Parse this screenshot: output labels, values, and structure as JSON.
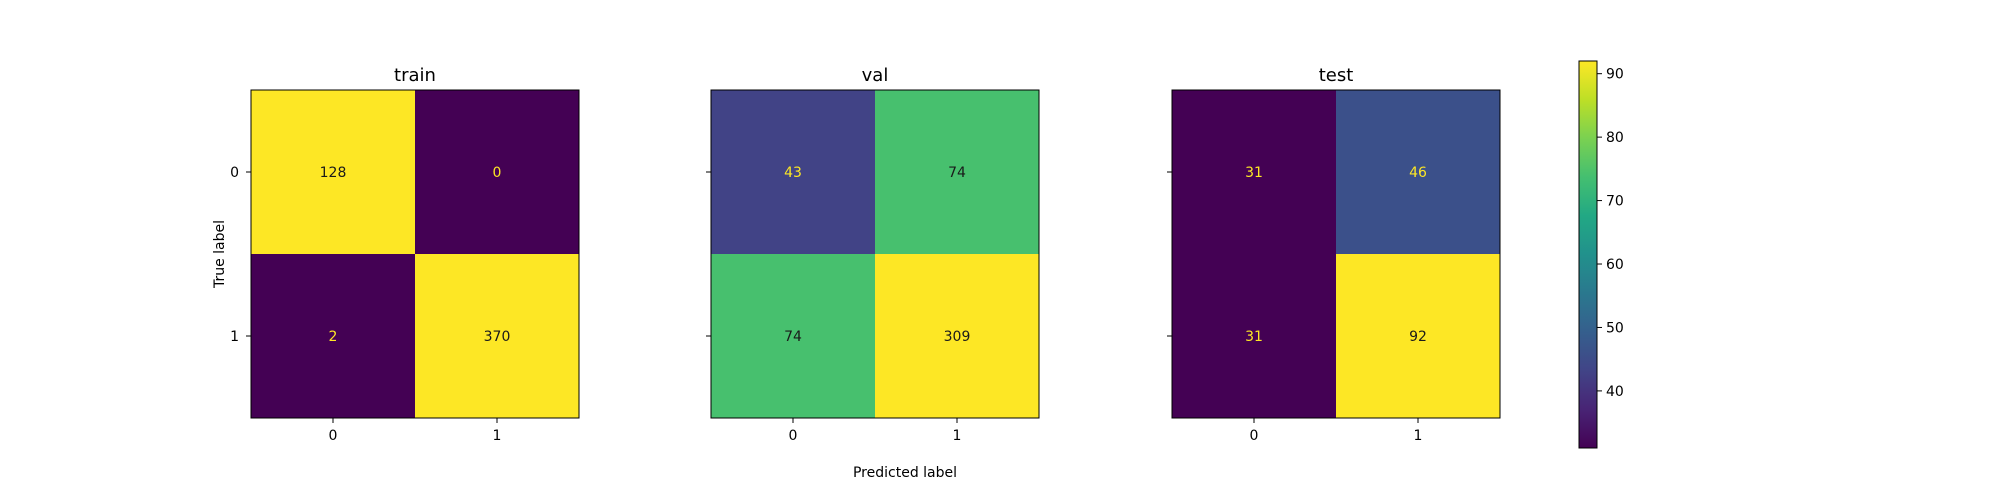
{
  "chart_data": {
    "type": "heatmap",
    "colormap": "viridis",
    "xlabel": "Predicted label",
    "ylabel": "True label",
    "class_labels": [
      "0",
      "1"
    ],
    "colorbar": {
      "range": [
        31,
        92
      ],
      "ticks": [
        40,
        50,
        60,
        70,
        80,
        90
      ]
    },
    "panels": [
      {
        "title": "train",
        "matrix": [
          [
            128,
            0
          ],
          [
            2,
            370
          ]
        ]
      },
      {
        "title": "val",
        "matrix": [
          [
            43,
            74
          ],
          [
            74,
            309
          ]
        ]
      },
      {
        "title": "test",
        "matrix": [
          [
            31,
            46
          ],
          [
            31,
            92
          ]
        ]
      }
    ],
    "colors": {
      "text_on_dark": "#fde725",
      "text_on_light": "#1a1a1a"
    }
  }
}
